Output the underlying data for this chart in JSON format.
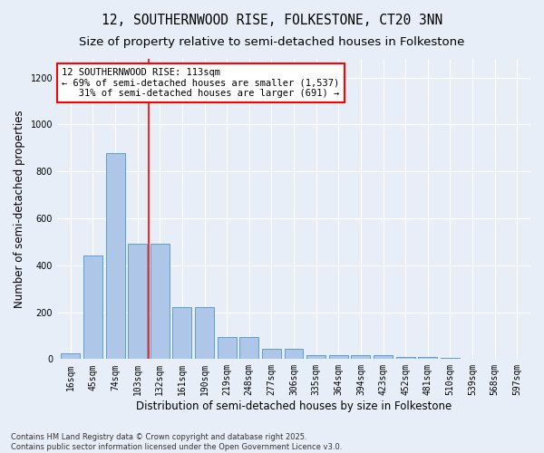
{
  "title_line1": "12, SOUTHERNWOOD RISE, FOLKESTONE, CT20 3NN",
  "title_line2": "Size of property relative to semi-detached houses in Folkestone",
  "xlabel": "Distribution of semi-detached houses by size in Folkestone",
  "ylabel": "Number of semi-detached properties",
  "categories": [
    "16sqm",
    "45sqm",
    "74sqm",
    "103sqm",
    "132sqm",
    "161sqm",
    "190sqm",
    "219sqm",
    "248sqm",
    "277sqm",
    "306sqm",
    "335sqm",
    "364sqm",
    "394sqm",
    "423sqm",
    "452sqm",
    "481sqm",
    "510sqm",
    "539sqm",
    "568sqm",
    "597sqm"
  ],
  "values": [
    25,
    440,
    880,
    490,
    490,
    220,
    220,
    95,
    95,
    45,
    45,
    18,
    18,
    15,
    15,
    10,
    10,
    4,
    2,
    1,
    1
  ],
  "bar_color": "#aec6e8",
  "bar_edge_color": "#5a9fd4",
  "vline_color": "red",
  "annotation_text": "12 SOUTHERNWOOD RISE: 113sqm\n← 69% of semi-detached houses are smaller (1,537)\n   31% of semi-detached houses are larger (691) →",
  "annotation_box_color": "white",
  "annotation_box_edge": "red",
  "ylim": [
    0,
    1280
  ],
  "yticks": [
    0,
    200,
    400,
    600,
    800,
    1000,
    1200
  ],
  "background_color": "#e8eef8",
  "footer_text": "Contains HM Land Registry data © Crown copyright and database right 2025.\nContains public sector information licensed under the Open Government Licence v3.0.",
  "title_fontsize": 10.5,
  "subtitle_fontsize": 9.5,
  "axis_label_fontsize": 8.5,
  "tick_fontsize": 7,
  "annotation_fontsize": 7.5
}
